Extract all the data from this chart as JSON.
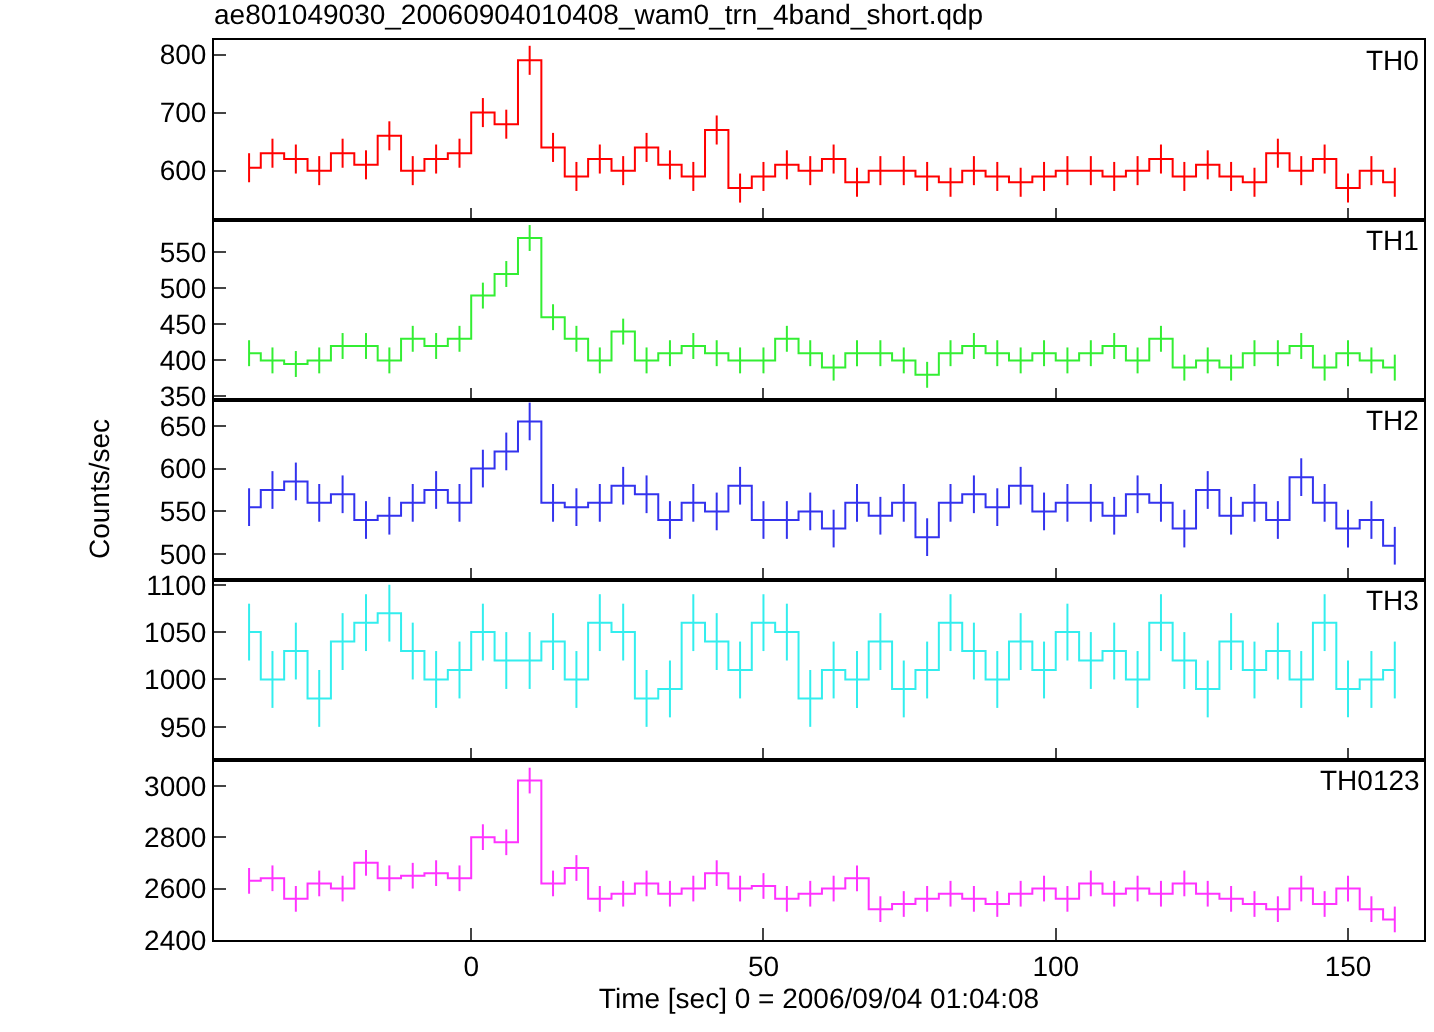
{
  "chart_data": [
    {
      "type": "step",
      "title": "ae801049030_20060904010408_wam0_trn_4band_short.qdp",
      "annotations": [
        "TH0"
      ],
      "tick_labels": "y",
      "xlim": [
        -44,
        163
      ],
      "xticks": [
        0,
        50,
        100,
        150
      ],
      "ylim": [
        515,
        825
      ],
      "yticks": [
        600,
        700,
        800
      ],
      "x": [
        -38,
        -34,
        -30,
        -26,
        -22,
        -18,
        -14,
        -10,
        -6,
        -2,
        2,
        6,
        10,
        14,
        18,
        22,
        26,
        30,
        34,
        38,
        42,
        46,
        50,
        54,
        58,
        62,
        66,
        70,
        74,
        78,
        82,
        86,
        90,
        94,
        98,
        102,
        106,
        110,
        114,
        118,
        122,
        126,
        130,
        134,
        138,
        142,
        146,
        150,
        154,
        158
      ],
      "series": [
        {
          "color": "#ff0000",
          "values": [
            605,
            630,
            620,
            600,
            630,
            610,
            660,
            600,
            620,
            630,
            700,
            680,
            790,
            640,
            590,
            620,
            600,
            640,
            610,
            590,
            670,
            570,
            590,
            610,
            600,
            620,
            580,
            600,
            600,
            590,
            580,
            600,
            590,
            580,
            590,
            600,
            600,
            590,
            600,
            620,
            590,
            610,
            590,
            580,
            630,
            600,
            620,
            570,
            600,
            580
          ],
          "errors": [
            25,
            25,
            25,
            25,
            25,
            25,
            25,
            25,
            25,
            25,
            25,
            25,
            25,
            25,
            25,
            25,
            25,
            25,
            25,
            25,
            25,
            25,
            25,
            25,
            25,
            25,
            25,
            25,
            25,
            25,
            25,
            25,
            25,
            25,
            25,
            25,
            25,
            25,
            25,
            25,
            25,
            25,
            25,
            25,
            25,
            25,
            25,
            25,
            25,
            25
          ]
        }
      ]
    },
    {
      "type": "step",
      "annotations": [
        "TH1"
      ],
      "tick_labels": "y",
      "xlim": [
        -44,
        163
      ],
      "xticks": [
        0,
        50,
        100,
        150
      ],
      "ylim": [
        345,
        595
      ],
      "yticks": [
        350,
        400,
        450,
        500,
        550
      ],
      "x": [
        -38,
        -34,
        -30,
        -26,
        -22,
        -18,
        -14,
        -10,
        -6,
        -2,
        2,
        6,
        10,
        14,
        18,
        22,
        26,
        30,
        34,
        38,
        42,
        46,
        50,
        54,
        58,
        62,
        66,
        70,
        74,
        78,
        82,
        86,
        90,
        94,
        98,
        102,
        106,
        110,
        114,
        118,
        122,
        126,
        130,
        134,
        138,
        142,
        146,
        150,
        154,
        158
      ],
      "series": [
        {
          "color": "#33ee33",
          "values": [
            410,
            400,
            395,
            400,
            420,
            420,
            400,
            430,
            420,
            430,
            490,
            520,
            570,
            460,
            430,
            400,
            440,
            400,
            410,
            420,
            410,
            400,
            400,
            430,
            410,
            390,
            410,
            410,
            400,
            380,
            410,
            420,
            410,
            400,
            410,
            400,
            410,
            420,
            400,
            430,
            390,
            400,
            390,
            410,
            410,
            420,
            390,
            410,
            400,
            390
          ],
          "errors": [
            18,
            18,
            18,
            18,
            18,
            18,
            18,
            18,
            18,
            18,
            18,
            18,
            18,
            18,
            18,
            18,
            18,
            18,
            18,
            18,
            18,
            18,
            18,
            18,
            18,
            18,
            18,
            18,
            18,
            18,
            18,
            18,
            18,
            18,
            18,
            18,
            18,
            18,
            18,
            18,
            18,
            18,
            18,
            18,
            18,
            18,
            18,
            18,
            18,
            18
          ]
        }
      ]
    },
    {
      "type": "step",
      "annotations": [
        "TH2"
      ],
      "ylabel": "Counts/sec",
      "tick_labels": "y",
      "xlim": [
        -44,
        163
      ],
      "xticks": [
        0,
        50,
        100,
        150
      ],
      "ylim": [
        470,
        680
      ],
      "yticks": [
        500,
        550,
        600,
        650
      ],
      "x": [
        -38,
        -34,
        -30,
        -26,
        -22,
        -18,
        -14,
        -10,
        -6,
        -2,
        2,
        6,
        10,
        14,
        18,
        22,
        26,
        30,
        34,
        38,
        42,
        46,
        50,
        54,
        58,
        62,
        66,
        70,
        74,
        78,
        82,
        86,
        90,
        94,
        98,
        102,
        106,
        110,
        114,
        118,
        122,
        126,
        130,
        134,
        138,
        142,
        146,
        150,
        154,
        158
      ],
      "series": [
        {
          "color": "#3333ee",
          "values": [
            555,
            575,
            585,
            560,
            570,
            540,
            545,
            560,
            575,
            560,
            600,
            620,
            655,
            560,
            555,
            560,
            580,
            570,
            540,
            560,
            550,
            580,
            540,
            540,
            550,
            530,
            560,
            545,
            560,
            520,
            560,
            570,
            555,
            580,
            550,
            560,
            560,
            545,
            570,
            560,
            530,
            575,
            545,
            560,
            540,
            590,
            560,
            530,
            540,
            510
          ],
          "errors": [
            22,
            22,
            22,
            22,
            22,
            22,
            22,
            22,
            22,
            22,
            22,
            22,
            22,
            22,
            22,
            22,
            22,
            22,
            22,
            22,
            22,
            22,
            22,
            22,
            22,
            22,
            22,
            22,
            22,
            22,
            22,
            22,
            22,
            22,
            22,
            22,
            22,
            22,
            22,
            22,
            22,
            22,
            22,
            22,
            22,
            22,
            22,
            22,
            22,
            22
          ]
        }
      ]
    },
    {
      "type": "step",
      "annotations": [
        "TH3"
      ],
      "tick_labels": "y",
      "xlim": [
        -44,
        163
      ],
      "xticks": [
        0,
        50,
        100,
        150
      ],
      "ylim": [
        915,
        1105
      ],
      "yticks": [
        950,
        1000,
        1050,
        1100
      ],
      "x": [
        -38,
        -34,
        -30,
        -26,
        -22,
        -18,
        -14,
        -10,
        -6,
        -2,
        2,
        6,
        10,
        14,
        18,
        22,
        26,
        30,
        34,
        38,
        42,
        46,
        50,
        54,
        58,
        62,
        66,
        70,
        74,
        78,
        82,
        86,
        90,
        94,
        98,
        102,
        106,
        110,
        114,
        118,
        122,
        126,
        130,
        134,
        138,
        142,
        146,
        150,
        154,
        158
      ],
      "series": [
        {
          "color": "#33eeee",
          "values": [
            1050,
            1000,
            1030,
            980,
            1040,
            1060,
            1070,
            1030,
            1000,
            1010,
            1050,
            1020,
            1020,
            1040,
            1000,
            1060,
            1050,
            980,
            990,
            1060,
            1040,
            1010,
            1060,
            1050,
            980,
            1010,
            1000,
            1040,
            990,
            1010,
            1060,
            1030,
            1000,
            1040,
            1010,
            1050,
            1020,
            1030,
            1000,
            1060,
            1020,
            990,
            1040,
            1010,
            1030,
            1000,
            1060,
            990,
            1000,
            1010
          ],
          "errors": [
            30,
            30,
            30,
            30,
            30,
            30,
            30,
            30,
            30,
            30,
            30,
            30,
            30,
            30,
            30,
            30,
            30,
            30,
            30,
            30,
            30,
            30,
            30,
            30,
            30,
            30,
            30,
            30,
            30,
            30,
            30,
            30,
            30,
            30,
            30,
            30,
            30,
            30,
            30,
            30,
            30,
            30,
            30,
            30,
            30,
            30,
            30,
            30,
            30,
            30
          ]
        }
      ]
    },
    {
      "type": "step",
      "annotations": [
        "TH0123"
      ],
      "xlabel": "Time [sec] 0 = 2006/09/04 01:04:08",
      "xlim": [
        -44,
        163
      ],
      "xticks": [
        0,
        50,
        100,
        150
      ],
      "ylim": [
        2400,
        3100
      ],
      "yticks": [
        2400,
        2600,
        2800,
        3000
      ],
      "x": [
        -38,
        -34,
        -30,
        -26,
        -22,
        -18,
        -14,
        -10,
        -6,
        -2,
        2,
        6,
        10,
        14,
        18,
        22,
        26,
        30,
        34,
        38,
        42,
        46,
        50,
        54,
        58,
        62,
        66,
        70,
        74,
        78,
        82,
        86,
        90,
        94,
        98,
        102,
        106,
        110,
        114,
        118,
        122,
        126,
        130,
        134,
        138,
        142,
        146,
        150,
        154,
        158
      ],
      "series": [
        {
          "color": "#ff33ff",
          "values": [
            2630,
            2640,
            2560,
            2620,
            2600,
            2700,
            2640,
            2650,
            2660,
            2640,
            2800,
            2780,
            3020,
            2620,
            2680,
            2560,
            2580,
            2620,
            2580,
            2600,
            2660,
            2600,
            2610,
            2560,
            2580,
            2600,
            2640,
            2520,
            2540,
            2560,
            2580,
            2560,
            2540,
            2580,
            2600,
            2560,
            2620,
            2580,
            2600,
            2580,
            2620,
            2580,
            2560,
            2540,
            2520,
            2600,
            2540,
            2600,
            2520,
            2480
          ],
          "errors": [
            50,
            50,
            50,
            50,
            50,
            50,
            50,
            50,
            50,
            50,
            50,
            50,
            50,
            50,
            50,
            50,
            50,
            50,
            50,
            50,
            50,
            50,
            50,
            50,
            50,
            50,
            50,
            50,
            50,
            50,
            50,
            50,
            50,
            50,
            50,
            50,
            50,
            50,
            50,
            50,
            50,
            50,
            50,
            50,
            50,
            50,
            50,
            50,
            50,
            50
          ]
        }
      ]
    }
  ]
}
